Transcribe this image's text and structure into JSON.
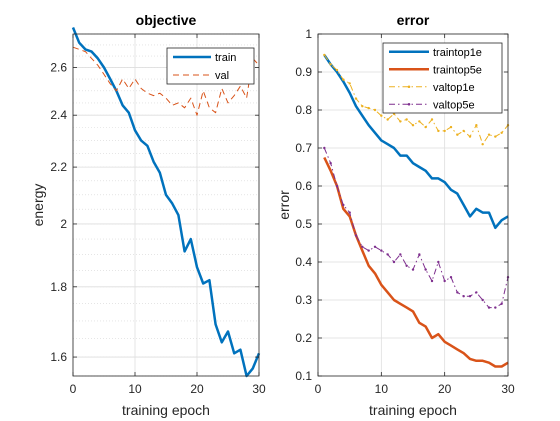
{
  "chart_data": [
    {
      "type": "line",
      "title": "objective",
      "xlabel": "training epoch",
      "ylabel": "energy",
      "xlim": [
        0,
        30
      ],
      "ylim": [
        1.55,
        2.75
      ],
      "log_y": true,
      "xticks": [
        0,
        10,
        20,
        30
      ],
      "yticks": [
        1.6,
        1.8,
        2,
        2.2,
        2.4,
        2.6
      ],
      "ytick_labels": [
        "1.6",
        "1.8",
        "2",
        "2.2",
        "2.4",
        "2.6"
      ],
      "grid": "major-and-minor-y",
      "legend_position": "top-right",
      "series": [
        {
          "name": "train",
          "color": "#0072BD",
          "style": "solid",
          "x": [
            0,
            1,
            2,
            3,
            4,
            5,
            6,
            7,
            8,
            9,
            10,
            11,
            12,
            13,
            14,
            15,
            16,
            17,
            18,
            19,
            20,
            21,
            22,
            23,
            24,
            25,
            26,
            27,
            28,
            29,
            30
          ],
          "values": [
            2.78,
            2.71,
            2.68,
            2.67,
            2.64,
            2.6,
            2.55,
            2.5,
            2.44,
            2.41,
            2.34,
            2.3,
            2.28,
            2.22,
            2.18,
            2.1,
            2.07,
            2.03,
            1.91,
            1.95,
            1.86,
            1.81,
            1.82,
            1.69,
            1.64,
            1.67,
            1.61,
            1.62,
            1.55,
            1.57,
            1.61
          ]
        },
        {
          "name": "val",
          "color": "#D95319",
          "style": "dashed",
          "x": [
            0,
            1,
            2,
            3,
            4,
            5,
            6,
            7,
            8,
            9,
            10,
            11,
            12,
            13,
            14,
            15,
            16,
            17,
            18,
            19,
            20,
            21,
            22,
            23,
            24,
            25,
            26,
            27,
            28,
            29,
            30
          ],
          "values": [
            2.69,
            2.68,
            2.67,
            2.64,
            2.61,
            2.57,
            2.53,
            2.5,
            2.55,
            2.51,
            2.55,
            2.51,
            2.49,
            2.48,
            2.49,
            2.47,
            2.44,
            2.45,
            2.43,
            2.47,
            2.4,
            2.5,
            2.43,
            2.41,
            2.51,
            2.45,
            2.48,
            2.52,
            2.47,
            2.64,
            2.61
          ]
        }
      ]
    },
    {
      "type": "line",
      "title": "error",
      "xlabel": "training epoch",
      "ylabel": "error",
      "xlim": [
        0,
        30
      ],
      "ylim": [
        0.1,
        1
      ],
      "xticks": [
        0,
        10,
        20,
        30
      ],
      "yticks": [
        0.1,
        0.2,
        0.3,
        0.4,
        0.5,
        0.6,
        0.7,
        0.8,
        0.9,
        1
      ],
      "ytick_labels": [
        "0.1",
        "0.2",
        "0.3",
        "0.4",
        "0.5",
        "0.6",
        "0.7",
        "0.8",
        "0.9",
        "1"
      ],
      "grid": "major",
      "legend_position": "top-right",
      "series": [
        {
          "name": "traintop1e",
          "color": "#0072BD",
          "style": "solid",
          "x": [
            1,
            2,
            3,
            4,
            5,
            6,
            7,
            8,
            9,
            10,
            11,
            12,
            13,
            14,
            15,
            16,
            17,
            18,
            19,
            20,
            21,
            22,
            23,
            24,
            25,
            26,
            27,
            28,
            29,
            30
          ],
          "values": [
            0.945,
            0.92,
            0.9,
            0.875,
            0.845,
            0.81,
            0.785,
            0.76,
            0.74,
            0.72,
            0.71,
            0.7,
            0.68,
            0.68,
            0.66,
            0.65,
            0.64,
            0.62,
            0.62,
            0.61,
            0.59,
            0.58,
            0.55,
            0.52,
            0.54,
            0.53,
            0.53,
            0.49,
            0.51,
            0.52
          ]
        },
        {
          "name": "traintop5e",
          "color": "#D95319",
          "style": "solid",
          "x": [
            1,
            2,
            3,
            4,
            5,
            6,
            7,
            8,
            9,
            10,
            11,
            12,
            13,
            14,
            15,
            16,
            17,
            18,
            19,
            20,
            21,
            22,
            23,
            24,
            25,
            26,
            27,
            28,
            29,
            30
          ],
          "values": [
            0.675,
            0.64,
            0.6,
            0.54,
            0.52,
            0.47,
            0.43,
            0.39,
            0.37,
            0.34,
            0.32,
            0.3,
            0.29,
            0.28,
            0.27,
            0.24,
            0.23,
            0.2,
            0.21,
            0.19,
            0.18,
            0.17,
            0.16,
            0.145,
            0.14,
            0.14,
            0.135,
            0.125,
            0.125,
            0.135
          ]
        },
        {
          "name": "valtop1e",
          "color": "#EDB120",
          "style": "dashdot",
          "x": [
            1,
            2,
            3,
            4,
            5,
            6,
            7,
            8,
            9,
            10,
            11,
            12,
            13,
            14,
            15,
            16,
            17,
            18,
            19,
            20,
            21,
            22,
            23,
            24,
            25,
            26,
            27,
            28,
            29,
            30
          ],
          "values": [
            0.945,
            0.92,
            0.905,
            0.88,
            0.87,
            0.83,
            0.81,
            0.805,
            0.8,
            0.785,
            0.775,
            0.79,
            0.77,
            0.775,
            0.76,
            0.77,
            0.755,
            0.775,
            0.745,
            0.745,
            0.755,
            0.735,
            0.745,
            0.73,
            0.76,
            0.71,
            0.735,
            0.73,
            0.74,
            0.76
          ]
        },
        {
          "name": "valtop5e",
          "color": "#7E2F8E",
          "style": "dashdot",
          "x": [
            1,
            2,
            3,
            4,
            5,
            6,
            7,
            8,
            9,
            10,
            11,
            12,
            13,
            14,
            15,
            16,
            17,
            18,
            19,
            20,
            21,
            22,
            23,
            24,
            25,
            26,
            27,
            28,
            29,
            30
          ],
          "values": [
            0.7,
            0.66,
            0.6,
            0.55,
            0.53,
            0.47,
            0.44,
            0.43,
            0.44,
            0.43,
            0.42,
            0.4,
            0.42,
            0.39,
            0.38,
            0.42,
            0.38,
            0.35,
            0.4,
            0.35,
            0.36,
            0.32,
            0.31,
            0.31,
            0.32,
            0.3,
            0.28,
            0.28,
            0.29,
            0.36
          ]
        }
      ]
    }
  ]
}
